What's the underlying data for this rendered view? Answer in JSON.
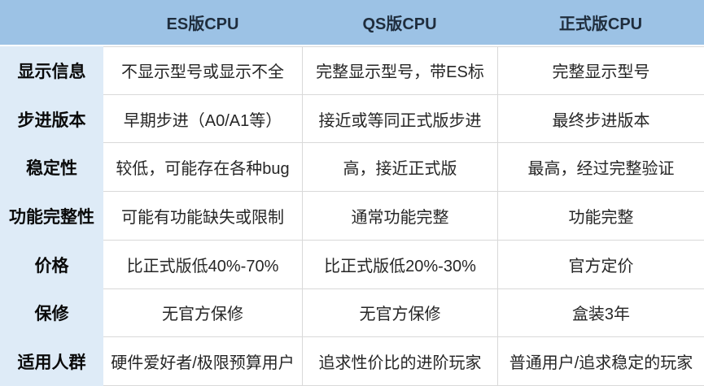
{
  "table": {
    "columns": {
      "label": "",
      "es": "ES版CPU",
      "qs": "QS版CPU",
      "retail": "正式版CPU"
    },
    "rows": [
      {
        "label": "显示信息",
        "es": "不显示型号或显示不全",
        "qs": "完整显示型号，带ES标",
        "retail": "完整显示型号"
      },
      {
        "label": "步进版本",
        "es": "早期步进（A0/A1等）",
        "qs": "接近或等同正式版步进",
        "retail": "最终步进版本"
      },
      {
        "label": "稳定性",
        "es": "较低，可能存在各种bug",
        "qs": "高，接近正式版",
        "retail": "最高，经过完整验证"
      },
      {
        "label": "功能完整性",
        "es": "可能有功能缺失或限制",
        "qs": "通常功能完整",
        "retail": "功能完整"
      },
      {
        "label": "价格",
        "es": "比正式版低40%-70%",
        "qs": "比正式版低20%-30%",
        "retail": "官方定价"
      },
      {
        "label": "保修",
        "es": "无官方保修",
        "qs": "无官方保修",
        "retail": "盒装3年"
      },
      {
        "label": "适用人群",
        "es": "硬件爱好者/极限预算用户",
        "qs": "追求性价比的进阶玩家",
        "retail": "普通用户/追求稳定的玩家"
      }
    ],
    "colors": {
      "header_bg": "#9CC2E5",
      "label_column_bg": "#DEEBF7",
      "header_text": "#1F2D3D",
      "cell_text": "#262626",
      "grid_line": "#D9D9D9"
    }
  }
}
